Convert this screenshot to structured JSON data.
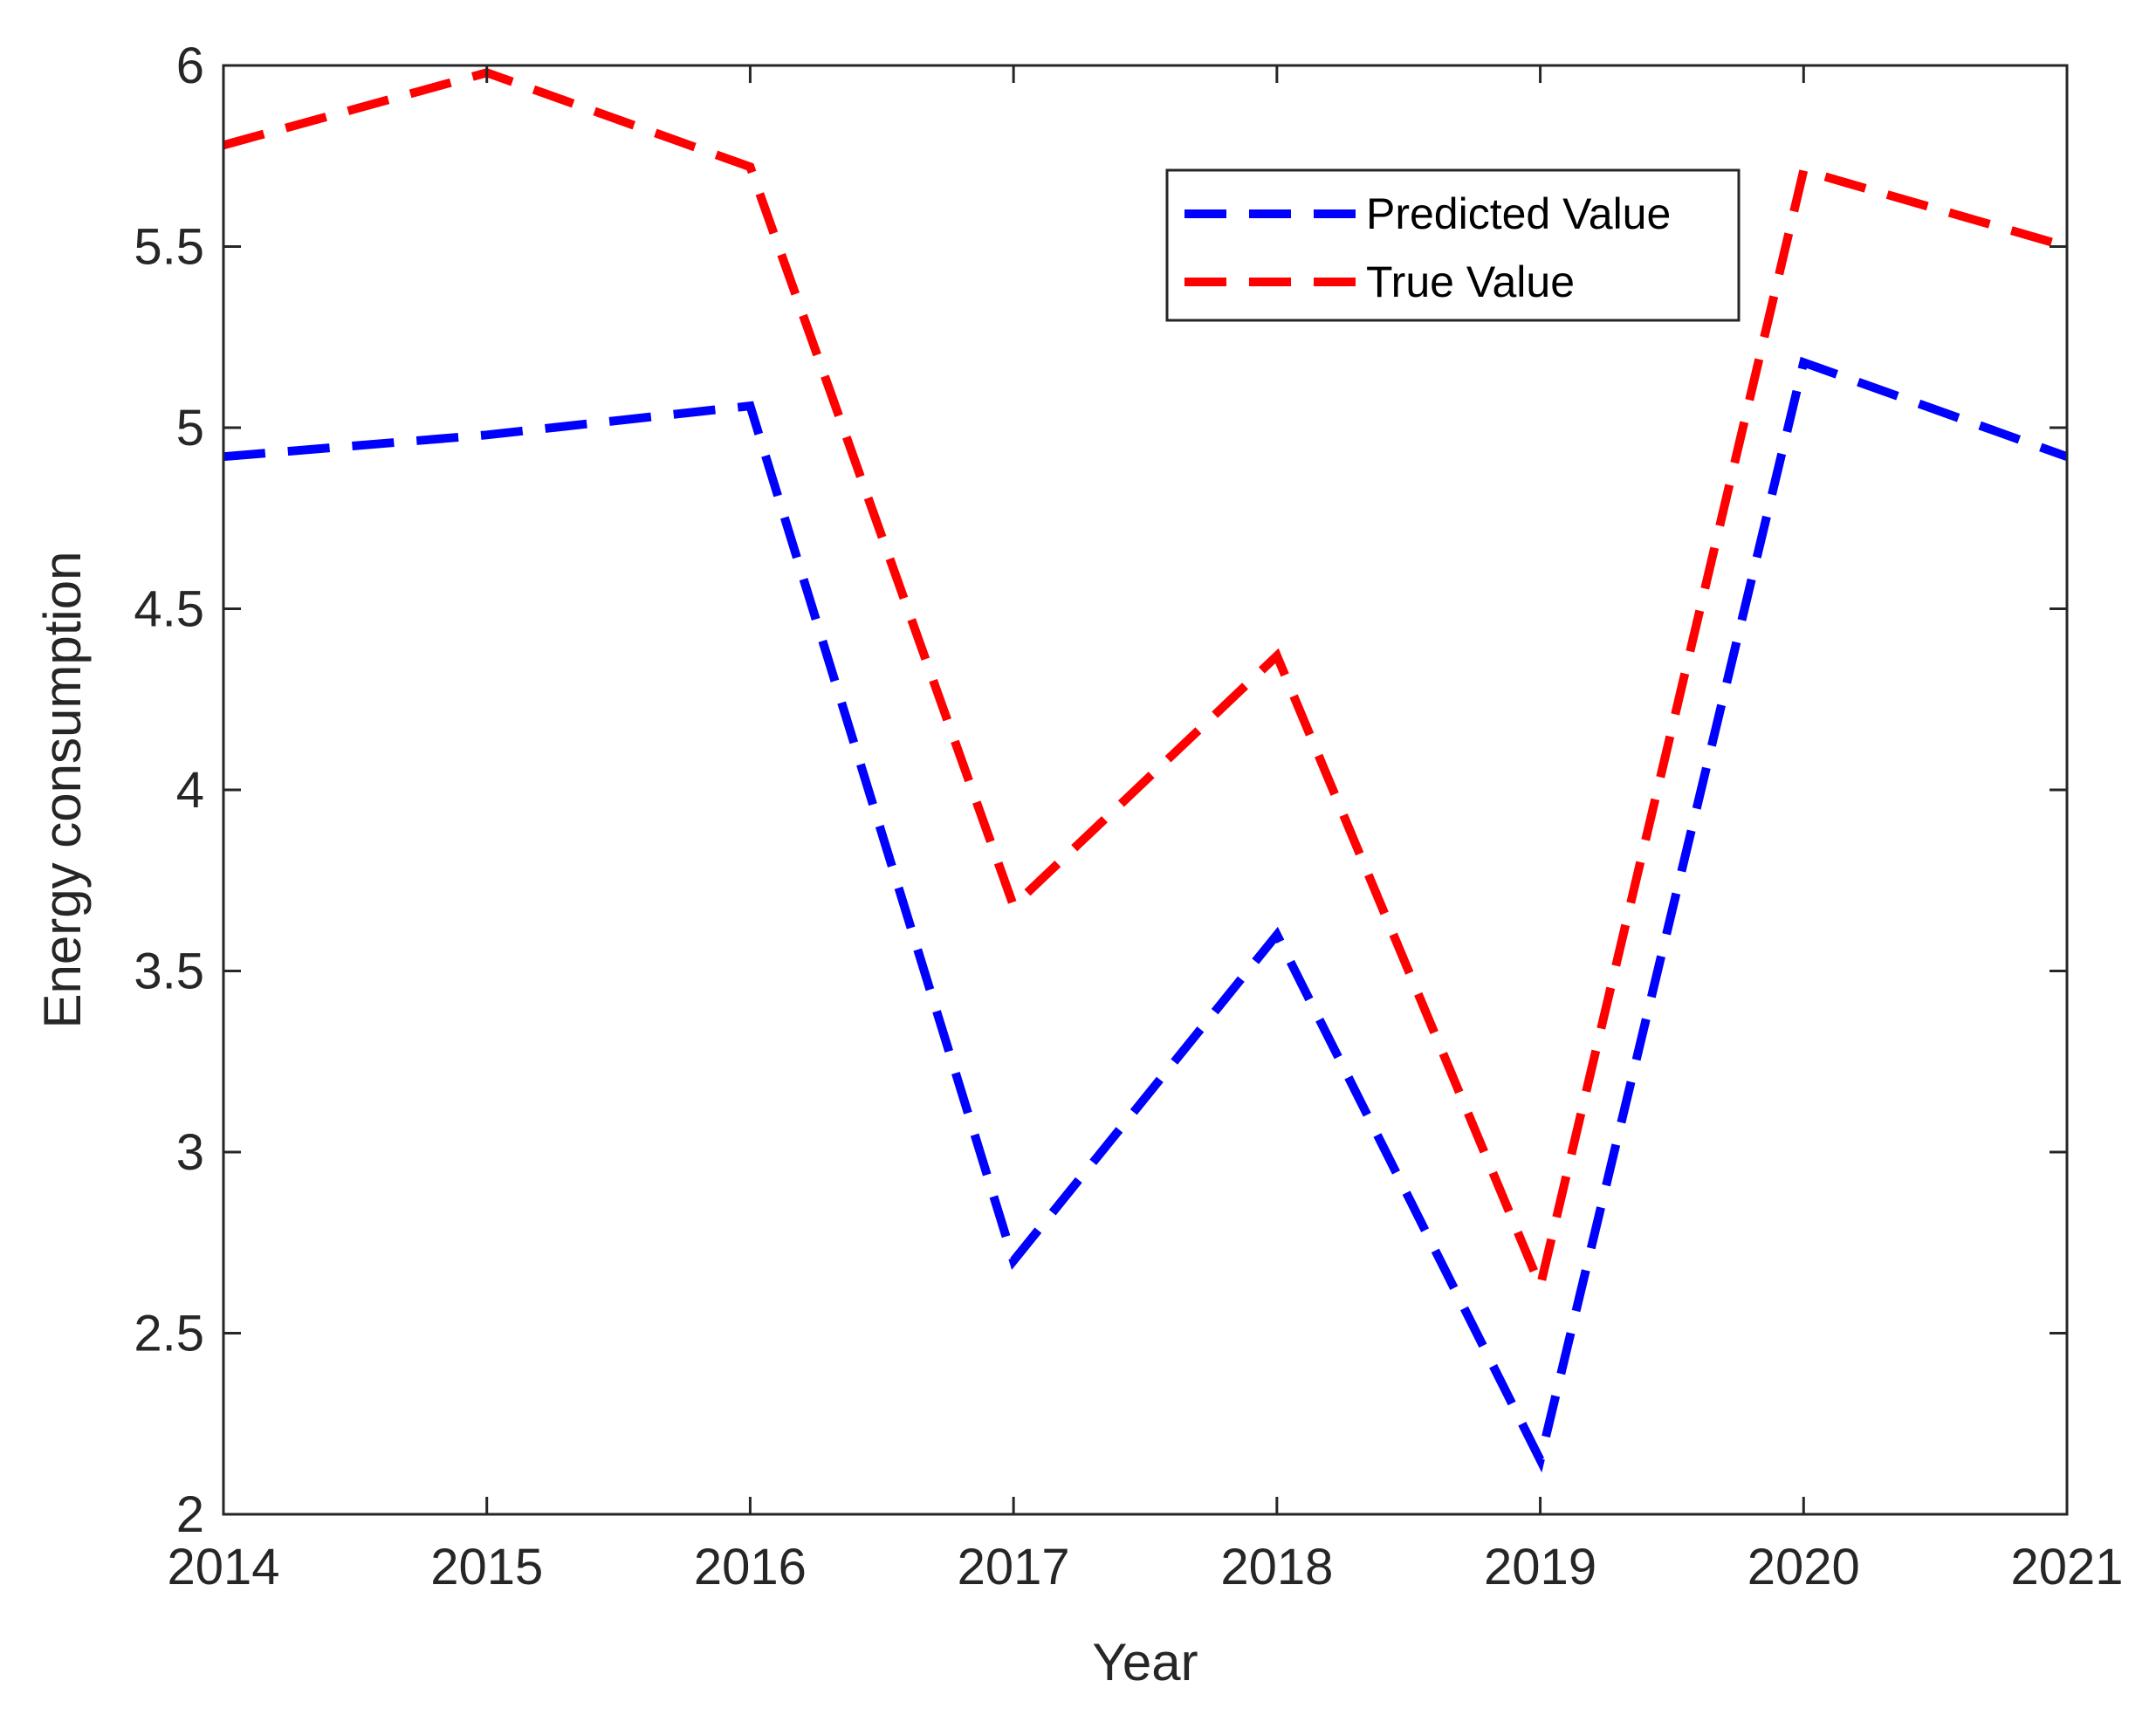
{
  "chart_data": {
    "type": "line",
    "title": "",
    "xlabel": "Year",
    "ylabel": "Energy consumption",
    "x": [
      2014,
      2015,
      2016,
      2017,
      2018,
      2019,
      2020,
      2021
    ],
    "xlim": [
      2014,
      2021
    ],
    "ylim": [
      2,
      6
    ],
    "x_ticks": [
      "2014",
      "2015",
      "2016",
      "2017",
      "2018",
      "2019",
      "2020",
      "2021"
    ],
    "y_ticks": [
      "2",
      "2.5",
      "3",
      "3.5",
      "4",
      "4.5",
      "5",
      "5.5",
      "6"
    ],
    "y_tick_values": [
      2,
      2.5,
      3,
      3.5,
      4,
      4.5,
      5,
      5.5,
      6
    ],
    "grid": false,
    "legend_position": "top-right",
    "series": [
      {
        "name": "Predicted Value",
        "color": "#0000ff",
        "line_style": "dashed",
        "values": [
          4.92,
          4.98,
          5.06,
          2.7,
          3.6,
          2.15,
          5.18,
          4.92
        ]
      },
      {
        "name": "True Value",
        "color": "#ff0000",
        "line_style": "dashed",
        "values": [
          5.78,
          5.98,
          5.72,
          3.68,
          4.37,
          2.63,
          5.71,
          5.5
        ]
      }
    ]
  }
}
